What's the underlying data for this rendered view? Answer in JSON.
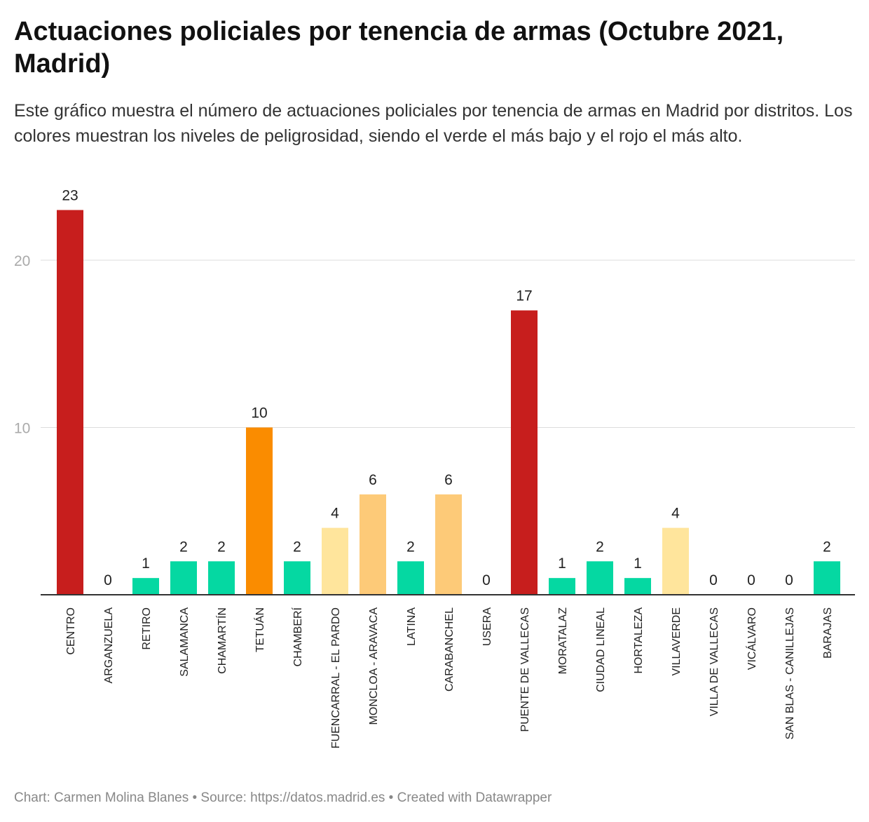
{
  "chart_data": {
    "type": "bar",
    "title": "Actuaciones policiales por tenencia de armas (Octubre 2021, Madrid)",
    "subtitle": "Este gráfico muestra el número de actuaciones policiales por tenencia de armas en Madrid por distritos. Los colores muestran los niveles de peligrosidad, siendo el verde el más bajo y el rojo el más alto.",
    "xlabel": "",
    "ylabel": "",
    "ylim": [
      0,
      23
    ],
    "yticks": [
      10,
      20
    ],
    "grid": true,
    "categories": [
      "CENTRO",
      "ARGANZUELA",
      "RETIRO",
      "SALAMANCA",
      "CHAMARTÍN",
      "TETUÁN",
      "CHAMBERÍ",
      "FUENCARRAL - EL PARDO",
      "MONCLOA - ARAVACA",
      "LATINA",
      "CARABANCHEL",
      "USERA",
      "PUENTE DE VALLECAS",
      "MORATALAZ",
      "CIUDAD LINEAL",
      "HORTALEZA",
      "VILLAVERDE",
      "VILLA DE VALLECAS",
      "VICÁLVARO",
      "SAN BLAS - CANILLEJAS",
      "BARAJAS"
    ],
    "values": [
      23,
      0,
      1,
      2,
      2,
      10,
      2,
      4,
      6,
      2,
      6,
      0,
      17,
      1,
      2,
      1,
      4,
      0,
      0,
      0,
      2
    ],
    "colors": [
      "#c71e1d",
      "#05d8a2",
      "#05d8a2",
      "#05d8a2",
      "#05d8a2",
      "#fa8c00",
      "#05d8a2",
      "#ffe59c",
      "#fdca78",
      "#05d8a2",
      "#fdca78",
      "#05d8a2",
      "#c71e1d",
      "#05d8a2",
      "#05d8a2",
      "#05d8a2",
      "#ffe59c",
      "#05d8a2",
      "#05d8a2",
      "#05d8a2",
      "#05d8a2"
    ]
  },
  "footer": "Chart: Carmen Molina Blanes • Source: https://datos.madrid.es • Created with Datawrapper"
}
